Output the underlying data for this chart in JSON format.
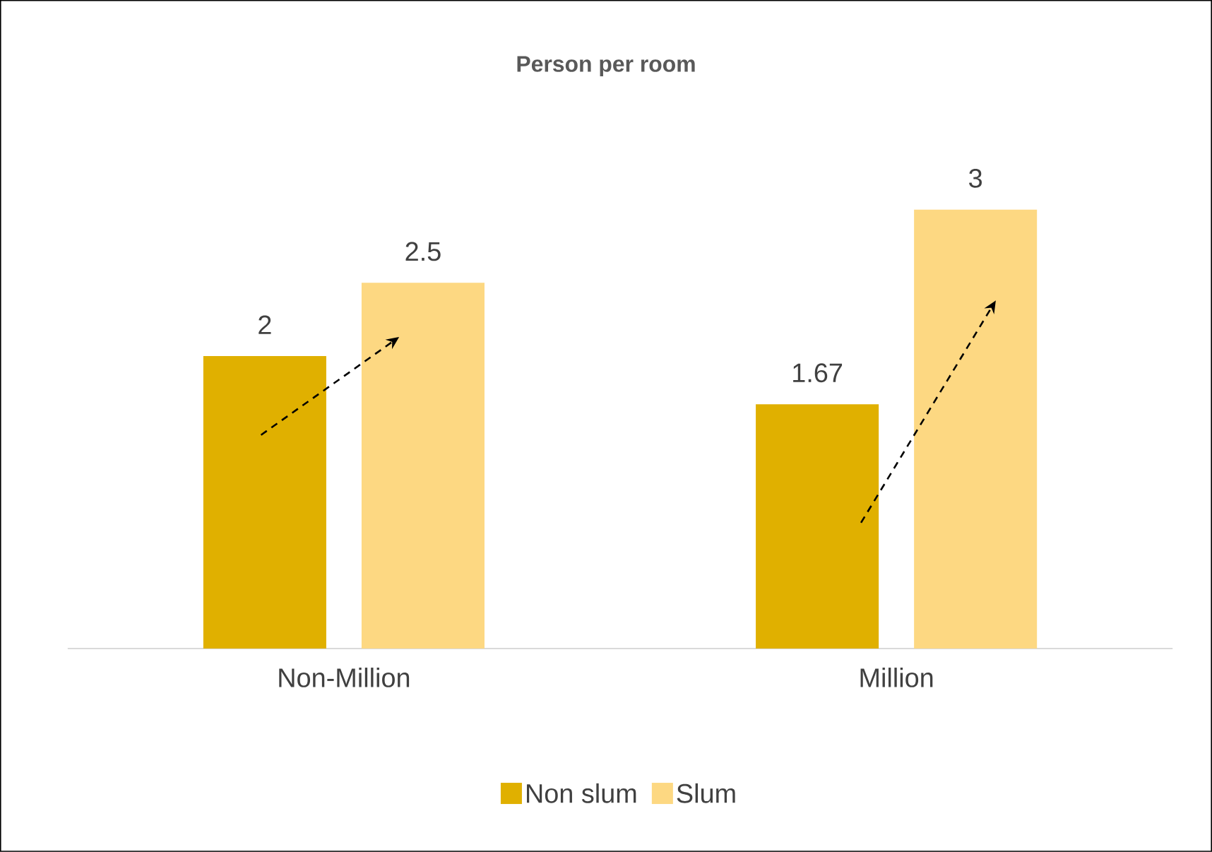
{
  "chart_data": {
    "type": "bar",
    "title": "Person per room",
    "categories": [
      "Non-Million",
      "Million"
    ],
    "series": [
      {
        "name": "Non slum",
        "color": "#e0b000",
        "values": [
          2,
          1.67
        ]
      },
      {
        "name": "Slum",
        "color": "#fdd882",
        "values": [
          2.5,
          3
        ]
      }
    ],
    "tick_labels": "x",
    "data_labels": true,
    "legend": "bottom"
  }
}
